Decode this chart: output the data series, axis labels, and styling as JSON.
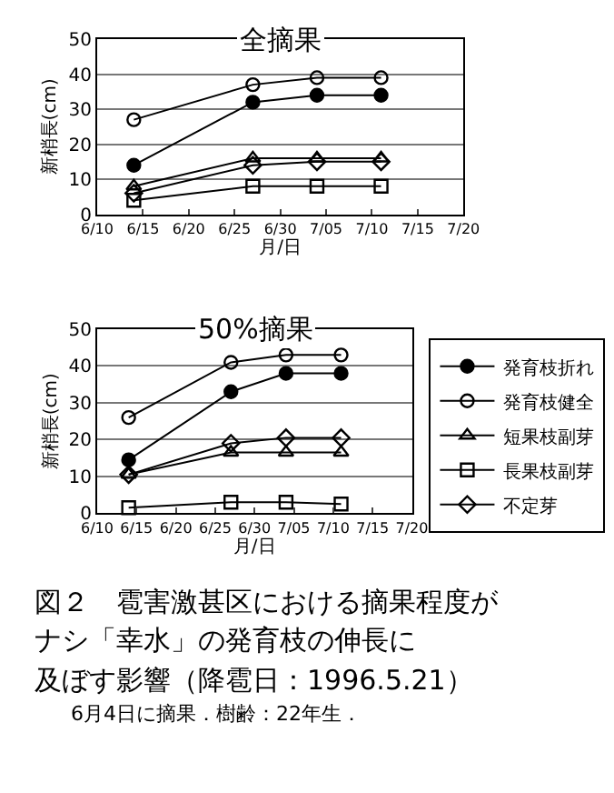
{
  "chart_data": [
    {
      "type": "line",
      "title": "全摘果",
      "ylabel": "新梢長(cm)",
      "xlabel": "月/日",
      "x": [
        "--06-14",
        "--06-27",
        "--07-04",
        "--07-11"
      ],
      "series": [
        {
          "color": "#000000",
          "marker": "circle",
          "values": [
            14,
            32,
            34,
            34
          ]
        },
        {
          "color": "#000000",
          "marker": "circle-open",
          "values": [
            27,
            37,
            39,
            39
          ]
        },
        {
          "color": "#000000",
          "marker": "triangle-open",
          "values": [
            8,
            16,
            16,
            16
          ]
        },
        {
          "color": "#000000",
          "marker": "square-open",
          "values": [
            4,
            8,
            8,
            8
          ]
        },
        {
          "color": "#000000",
          "marker": "diamond-open",
          "values": [
            6,
            14,
            15,
            15
          ]
        }
      ],
      "xlim": [
        "--06-10",
        "--07-20"
      ],
      "xticks": [
        {
          "value": "--06-10",
          "label": "6/10"
        },
        {
          "value": "--06-15",
          "label": "6/15"
        },
        {
          "value": "--06-20",
          "label": "6/20"
        },
        {
          "value": "--06-25",
          "label": "6/25"
        },
        {
          "value": "--06-30",
          "label": "6/30"
        },
        {
          "value": "--07-05",
          "label": "7/05"
        },
        {
          "value": "--07-10",
          "label": "7/10"
        },
        {
          "value": "--07-15",
          "label": "7/15"
        },
        {
          "value": "--07-20",
          "label": "7/20"
        }
      ],
      "ylim": [
        0,
        50
      ],
      "yticks": [
        0,
        10,
        20,
        30,
        40,
        50
      ],
      "grid": "y",
      "legend": false,
      "line_style": "solid"
    },
    {
      "type": "line",
      "title": "50%摘果",
      "ylabel": "新梢長(cm)",
      "xlabel": "月/日",
      "x": [
        "--06-14",
        "--06-27",
        "--07-04",
        "--07-11"
      ],
      "series": [
        {
          "name": "発育枝折れ",
          "color": "#000000",
          "marker": "circle",
          "values": [
            14.5,
            33,
            38,
            38
          ]
        },
        {
          "name": "発育枝健全",
          "color": "#000000",
          "marker": "circle-open",
          "values": [
            26,
            41,
            43,
            43
          ]
        },
        {
          "name": "短果枝副芽",
          "color": "#000000",
          "marker": "triangle-open",
          "values": [
            10.5,
            16.5,
            16.5,
            16.5
          ]
        },
        {
          "name": "長果枝副芽",
          "color": "#000000",
          "marker": "square-open",
          "values": [
            1.5,
            3,
            3,
            2.5
          ]
        },
        {
          "name": "不定芽",
          "color": "#000000",
          "marker": "diamond-open",
          "values": [
            10.5,
            19,
            20.5,
            20.5
          ]
        }
      ],
      "xlim": [
        "--06-10",
        "--07-20"
      ],
      "xticks": [
        {
          "value": "--06-10",
          "label": "6/10"
        },
        {
          "value": "--06-15",
          "label": "6/15"
        },
        {
          "value": "--06-20",
          "label": "6/20"
        },
        {
          "value": "--06-25",
          "label": "6/25"
        },
        {
          "value": "--06-30",
          "label": "6/30"
        },
        {
          "value": "--07-05",
          "label": "7/05"
        },
        {
          "value": "--07-10",
          "label": "7/10"
        },
        {
          "value": "--07-15",
          "label": "7/15"
        },
        {
          "value": "--07-20",
          "label": "7/20"
        }
      ],
      "ylim": [
        0,
        50
      ],
      "yticks": [
        0,
        10,
        20,
        30,
        40,
        50
      ],
      "grid": "y",
      "legend": "right",
      "line_style": "solid",
      "annotations": [
        "図２　雹害激甚区における摘果程度が",
        "ナシ「幸水」の発育枝の伸長に",
        "及ぼす影響（降雹日：1996.5.21）",
        "6月4日に摘果．樹齢：22年生．"
      ]
    }
  ]
}
